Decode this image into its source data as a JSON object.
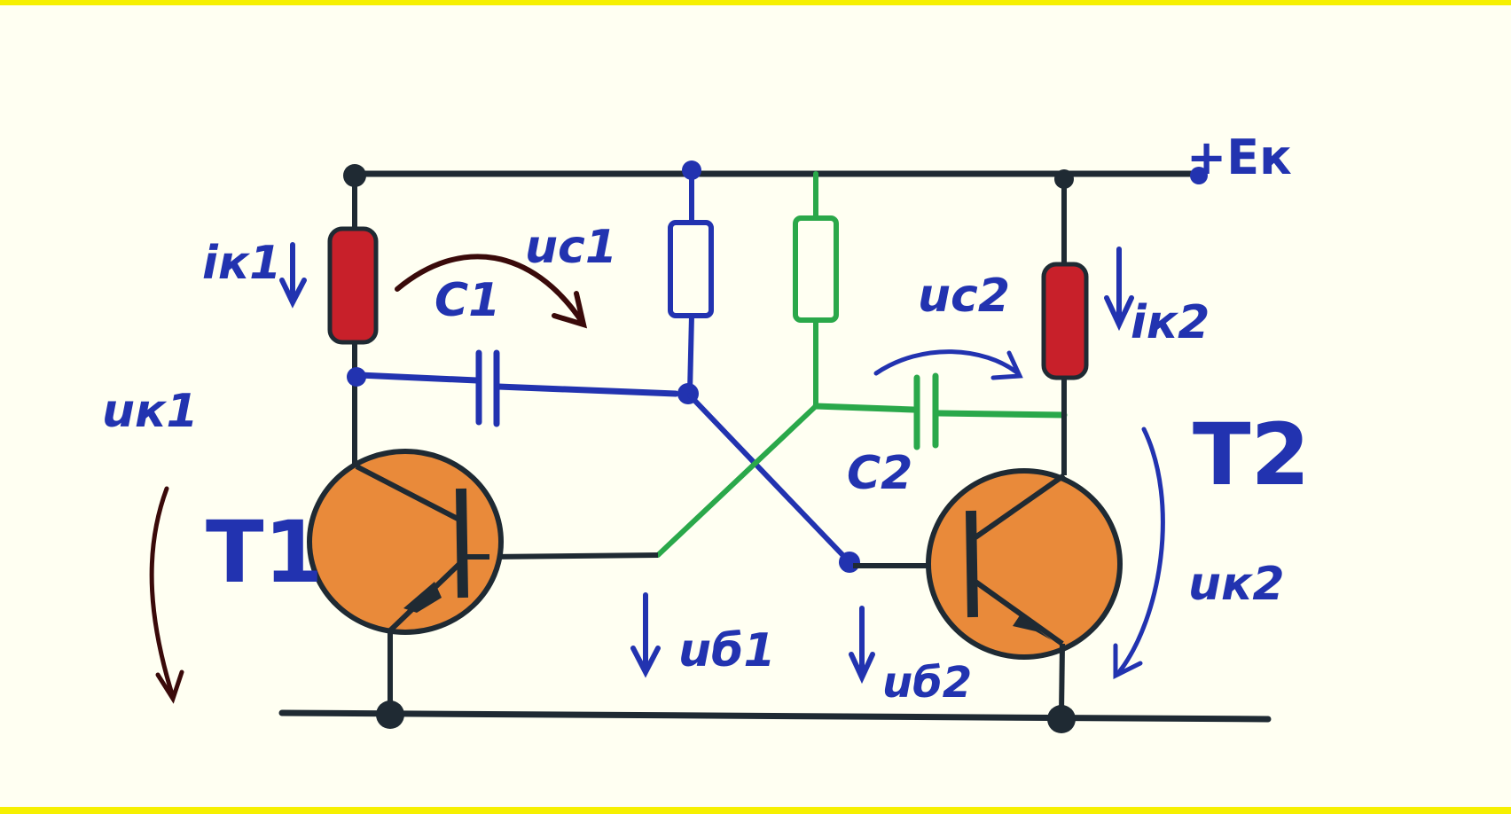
{
  "labels": {
    "supply": "+Eк",
    "transistor1": "T1",
    "transistor2": "T2",
    "capacitor1": "C1",
    "capacitor2": "C2",
    "collector_current1": "iк1",
    "collector_current2": "iк2",
    "capacitor_voltage1": "uc1",
    "capacitor_voltage2": "uc2",
    "collector_voltage1": "uк1",
    "collector_voltage2": "uк2",
    "base_voltage1": "uб1",
    "base_voltage2": "uб2"
  },
  "colors": {
    "wire": "#1f2a33",
    "blue_wire": "#2233b0",
    "green_wire": "#2aa84a",
    "collector_resistor": "#c8202a",
    "transistor_body": "#e98a3a",
    "label": "#2233b0",
    "arrow_dark": "#3a0a0a"
  }
}
